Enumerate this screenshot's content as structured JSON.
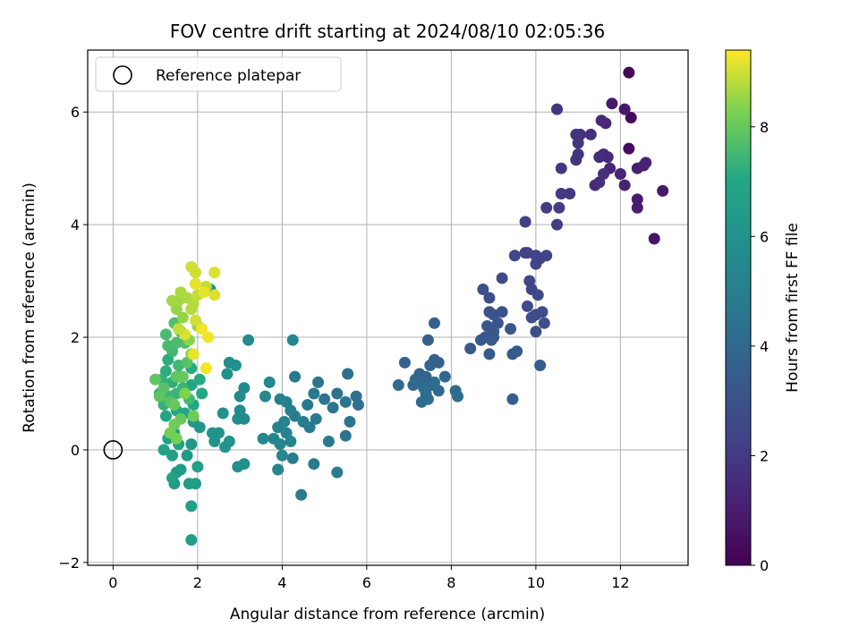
{
  "chart_data": {
    "type": "scatter",
    "title": "FOV centre drift starting at 2024/08/10 02:05:36",
    "xlabel": "Angular distance from reference (arcmin)",
    "ylabel": "Rotation from reference (arcmin)",
    "colorbar_label": "Hours from first FF file",
    "xlim": [
      -0.6,
      13.6
    ],
    "ylim": [
      -2.05,
      7.1
    ],
    "x_ticks": [
      0,
      2,
      4,
      6,
      8,
      10,
      12
    ],
    "y_ticks": [
      -2,
      0,
      2,
      4,
      6
    ],
    "colorbar_ticks": [
      0,
      2,
      4,
      6,
      8
    ],
    "colorbar_range": [
      0,
      9.4
    ],
    "grid": true,
    "colormap": "viridis",
    "legend": {
      "position": "top-left",
      "entries": [
        "Reference platepar"
      ]
    },
    "reference_point": {
      "x": 0,
      "y": 0
    },
    "points": [
      {
        "x": 12.2,
        "y": 6.7,
        "t": 0.2
      },
      {
        "x": 12.25,
        "y": 5.9,
        "t": 0.3
      },
      {
        "x": 12.2,
        "y": 5.35,
        "t": 0.4
      },
      {
        "x": 12.8,
        "y": 3.75,
        "t": 0.7
      },
      {
        "x": 13.0,
        "y": 4.6,
        "t": 0.9
      },
      {
        "x": 12.4,
        "y": 4.3,
        "t": 1.0
      },
      {
        "x": 12.4,
        "y": 4.45,
        "t": 1.0
      },
      {
        "x": 12.1,
        "y": 6.05,
        "t": 0.8
      },
      {
        "x": 11.8,
        "y": 6.15,
        "t": 0.9
      },
      {
        "x": 12.4,
        "y": 5.0,
        "t": 1.1
      },
      {
        "x": 12.55,
        "y": 5.05,
        "t": 1.1
      },
      {
        "x": 12.6,
        "y": 5.1,
        "t": 1.2
      },
      {
        "x": 12.1,
        "y": 4.7,
        "t": 1.2
      },
      {
        "x": 12.0,
        "y": 4.9,
        "t": 1.3
      },
      {
        "x": 11.65,
        "y": 5.8,
        "t": 1.3
      },
      {
        "x": 11.7,
        "y": 5.2,
        "t": 1.4
      },
      {
        "x": 11.75,
        "y": 5.0,
        "t": 1.3
      },
      {
        "x": 11.6,
        "y": 5.25,
        "t": 1.4
      },
      {
        "x": 11.55,
        "y": 5.85,
        "t": 1.4
      },
      {
        "x": 11.5,
        "y": 5.2,
        "t": 1.5
      },
      {
        "x": 11.4,
        "y": 4.7,
        "t": 1.5
      },
      {
        "x": 11.5,
        "y": 4.75,
        "t": 1.6
      },
      {
        "x": 11.6,
        "y": 4.9,
        "t": 1.6
      },
      {
        "x": 11.3,
        "y": 5.6,
        "t": 1.6
      },
      {
        "x": 11.05,
        "y": 5.6,
        "t": 1.7
      },
      {
        "x": 10.95,
        "y": 5.6,
        "t": 1.7
      },
      {
        "x": 11.0,
        "y": 5.45,
        "t": 1.8
      },
      {
        "x": 11.0,
        "y": 5.25,
        "t": 1.8
      },
      {
        "x": 10.95,
        "y": 5.15,
        "t": 1.8
      },
      {
        "x": 10.5,
        "y": 6.05,
        "t": 1.9
      },
      {
        "x": 10.6,
        "y": 5.0,
        "t": 1.9
      },
      {
        "x": 10.8,
        "y": 4.55,
        "t": 2.0
      },
      {
        "x": 10.6,
        "y": 4.55,
        "t": 2.0
      },
      {
        "x": 10.55,
        "y": 4.3,
        "t": 2.1
      },
      {
        "x": 10.25,
        "y": 4.3,
        "t": 2.1
      },
      {
        "x": 10.5,
        "y": 4.0,
        "t": 2.1
      },
      {
        "x": 9.75,
        "y": 4.05,
        "t": 2.2
      },
      {
        "x": 9.75,
        "y": 3.5,
        "t": 2.3
      },
      {
        "x": 9.8,
        "y": 3.5,
        "t": 2.3
      },
      {
        "x": 10.0,
        "y": 3.45,
        "t": 2.3
      },
      {
        "x": 10.1,
        "y": 3.4,
        "t": 2.4
      },
      {
        "x": 10.0,
        "y": 3.3,
        "t": 2.4
      },
      {
        "x": 10.25,
        "y": 3.45,
        "t": 2.4
      },
      {
        "x": 9.5,
        "y": 3.45,
        "t": 2.5
      },
      {
        "x": 9.85,
        "y": 3.0,
        "t": 2.5
      },
      {
        "x": 9.9,
        "y": 2.85,
        "t": 2.5
      },
      {
        "x": 9.2,
        "y": 3.05,
        "t": 2.6
      },
      {
        "x": 10.05,
        "y": 2.75,
        "t": 2.6
      },
      {
        "x": 9.8,
        "y": 2.55,
        "t": 2.7
      },
      {
        "x": 10.0,
        "y": 2.4,
        "t": 2.7
      },
      {
        "x": 10.15,
        "y": 2.45,
        "t": 2.7
      },
      {
        "x": 9.9,
        "y": 2.35,
        "t": 2.8
      },
      {
        "x": 10.2,
        "y": 2.25,
        "t": 2.8
      },
      {
        "x": 10.0,
        "y": 2.1,
        "t": 2.8
      },
      {
        "x": 8.75,
        "y": 2.85,
        "t": 2.9
      },
      {
        "x": 8.9,
        "y": 2.7,
        "t": 2.9
      },
      {
        "x": 8.9,
        "y": 2.45,
        "t": 3.0
      },
      {
        "x": 9.0,
        "y": 2.4,
        "t": 3.0
      },
      {
        "x": 9.2,
        "y": 2.45,
        "t": 3.0
      },
      {
        "x": 9.1,
        "y": 2.25,
        "t": 3.1
      },
      {
        "x": 8.85,
        "y": 2.2,
        "t": 3.1
      },
      {
        "x": 9.0,
        "y": 2.0,
        "t": 3.1
      },
      {
        "x": 9.4,
        "y": 2.15,
        "t": 3.2
      },
      {
        "x": 8.8,
        "y": 2.0,
        "t": 3.2
      },
      {
        "x": 9.0,
        "y": 2.1,
        "t": 3.2
      },
      {
        "x": 8.7,
        "y": 1.95,
        "t": 3.3
      },
      {
        "x": 8.95,
        "y": 1.95,
        "t": 3.3
      },
      {
        "x": 8.45,
        "y": 1.8,
        "t": 3.3
      },
      {
        "x": 8.9,
        "y": 1.7,
        "t": 3.4
      },
      {
        "x": 9.45,
        "y": 1.7,
        "t": 3.4
      },
      {
        "x": 9.55,
        "y": 1.75,
        "t": 3.4
      },
      {
        "x": 10.1,
        "y": 1.5,
        "t": 3.5
      },
      {
        "x": 9.45,
        "y": 0.9,
        "t": 3.5
      },
      {
        "x": 7.6,
        "y": 2.25,
        "t": 3.6
      },
      {
        "x": 7.45,
        "y": 1.95,
        "t": 3.6
      },
      {
        "x": 7.6,
        "y": 1.6,
        "t": 3.7
      },
      {
        "x": 7.7,
        "y": 1.55,
        "t": 3.7
      },
      {
        "x": 6.9,
        "y": 1.55,
        "t": 3.7
      },
      {
        "x": 7.25,
        "y": 1.35,
        "t": 3.8
      },
      {
        "x": 7.5,
        "y": 1.5,
        "t": 3.8
      },
      {
        "x": 7.4,
        "y": 1.3,
        "t": 3.8
      },
      {
        "x": 7.15,
        "y": 1.25,
        "t": 3.9
      },
      {
        "x": 7.3,
        "y": 1.2,
        "t": 3.9
      },
      {
        "x": 7.55,
        "y": 1.15,
        "t": 3.9
      },
      {
        "x": 7.85,
        "y": 1.3,
        "t": 4.0
      },
      {
        "x": 7.7,
        "y": 1.05,
        "t": 4.0
      },
      {
        "x": 7.4,
        "y": 1.0,
        "t": 4.0
      },
      {
        "x": 7.1,
        "y": 1.15,
        "t": 4.1
      },
      {
        "x": 6.75,
        "y": 1.15,
        "t": 4.1
      },
      {
        "x": 8.1,
        "y": 1.05,
        "t": 4.1
      },
      {
        "x": 8.15,
        "y": 0.95,
        "t": 4.2
      },
      {
        "x": 7.45,
        "y": 0.9,
        "t": 4.2
      },
      {
        "x": 7.3,
        "y": 0.85,
        "t": 4.2
      },
      {
        "x": 7.35,
        "y": 1.1,
        "t": 4.2
      },
      {
        "x": 7.6,
        "y": 1.2,
        "t": 4.3
      },
      {
        "x": 5.55,
        "y": 1.35,
        "t": 4.3
      },
      {
        "x": 5.75,
        "y": 0.95,
        "t": 4.4
      },
      {
        "x": 5.8,
        "y": 0.8,
        "t": 4.4
      },
      {
        "x": 5.3,
        "y": 1.0,
        "t": 4.4
      },
      {
        "x": 5.5,
        "y": 0.85,
        "t": 4.5
      },
      {
        "x": 5.6,
        "y": 0.5,
        "t": 4.5
      },
      {
        "x": 5.5,
        "y": 0.25,
        "t": 4.5
      },
      {
        "x": 5.2,
        "y": 0.75,
        "t": 4.6
      },
      {
        "x": 5.0,
        "y": 0.9,
        "t": 4.6
      },
      {
        "x": 4.85,
        "y": 1.2,
        "t": 4.6
      },
      {
        "x": 4.75,
        "y": 1.0,
        "t": 4.7
      },
      {
        "x": 4.6,
        "y": 0.8,
        "t": 4.7
      },
      {
        "x": 4.3,
        "y": 1.3,
        "t": 4.7
      },
      {
        "x": 4.8,
        "y": 0.55,
        "t": 4.8
      },
      {
        "x": 4.65,
        "y": 0.4,
        "t": 4.8
      },
      {
        "x": 5.1,
        "y": 0.15,
        "t": 4.8
      },
      {
        "x": 5.3,
        "y": -0.4,
        "t": 4.9
      },
      {
        "x": 4.45,
        "y": -0.8,
        "t": 4.9
      },
      {
        "x": 4.75,
        "y": -0.25,
        "t": 4.9
      },
      {
        "x": 4.25,
        "y": -0.15,
        "t": 5.0
      },
      {
        "x": 4.5,
        "y": 0.5,
        "t": 5.0
      },
      {
        "x": 4.3,
        "y": 0.6,
        "t": 5.0
      },
      {
        "x": 4.1,
        "y": 0.85,
        "t": 5.1
      },
      {
        "x": 3.95,
        "y": 0.9,
        "t": 5.1
      },
      {
        "x": 4.2,
        "y": 0.7,
        "t": 5.1
      },
      {
        "x": 4.05,
        "y": 0.5,
        "t": 5.2
      },
      {
        "x": 3.9,
        "y": 0.4,
        "t": 5.2
      },
      {
        "x": 4.1,
        "y": 0.3,
        "t": 5.2
      },
      {
        "x": 4.2,
        "y": 0.15,
        "t": 5.3
      },
      {
        "x": 3.95,
        "y": 0.1,
        "t": 5.3
      },
      {
        "x": 3.8,
        "y": 0.2,
        "t": 5.3
      },
      {
        "x": 4.0,
        "y": -0.1,
        "t": 5.4
      },
      {
        "x": 3.9,
        "y": -0.35,
        "t": 5.4
      },
      {
        "x": 4.25,
        "y": 1.95,
        "t": 5.4
      },
      {
        "x": 3.6,
        "y": 0.95,
        "t": 5.5
      },
      {
        "x": 3.55,
        "y": 0.2,
        "t": 5.5
      },
      {
        "x": 3.7,
        "y": 1.2,
        "t": 5.5
      },
      {
        "x": 3.2,
        "y": 1.95,
        "t": 5.6
      },
      {
        "x": 3.1,
        "y": 1.1,
        "t": 5.6
      },
      {
        "x": 3.0,
        "y": 0.95,
        "t": 5.6
      },
      {
        "x": 3.0,
        "y": 0.7,
        "t": 5.7
      },
      {
        "x": 3.1,
        "y": 0.55,
        "t": 5.7
      },
      {
        "x": 2.95,
        "y": 0.55,
        "t": 5.7
      },
      {
        "x": 3.1,
        "y": -0.25,
        "t": 5.8
      },
      {
        "x": 2.95,
        "y": -0.3,
        "t": 5.8
      },
      {
        "x": 2.75,
        "y": 1.55,
        "t": 5.8
      },
      {
        "x": 2.9,
        "y": 1.5,
        "t": 5.9
      },
      {
        "x": 2.7,
        "y": 1.35,
        "t": 5.9
      },
      {
        "x": 2.6,
        "y": 0.65,
        "t": 5.9
      },
      {
        "x": 2.75,
        "y": 0.15,
        "t": 6.0
      },
      {
        "x": 2.65,
        "y": 0.05,
        "t": 6.0
      },
      {
        "x": 2.5,
        "y": 0.3,
        "t": 6.0
      },
      {
        "x": 2.35,
        "y": 0.3,
        "t": 6.1
      },
      {
        "x": 2.4,
        "y": 0.15,
        "t": 6.1
      },
      {
        "x": 2.05,
        "y": 0.4,
        "t": 6.2
      },
      {
        "x": 2.3,
        "y": 2.85,
        "t": 6.2
      },
      {
        "x": 1.9,
        "y": 0.5,
        "t": 6.3
      },
      {
        "x": 1.85,
        "y": 0.1,
        "t": 6.3
      },
      {
        "x": 1.75,
        "y": -0.1,
        "t": 6.4
      },
      {
        "x": 1.6,
        "y": -0.35,
        "t": 6.4
      },
      {
        "x": 1.5,
        "y": -0.4,
        "t": 6.4
      },
      {
        "x": 1.45,
        "y": -0.6,
        "t": 6.5
      },
      {
        "x": 1.8,
        "y": -0.6,
        "t": 6.5
      },
      {
        "x": 1.95,
        "y": -0.6,
        "t": 6.5
      },
      {
        "x": 2.0,
        "y": -0.3,
        "t": 6.6
      },
      {
        "x": 1.85,
        "y": -1.0,
        "t": 6.6
      },
      {
        "x": 1.85,
        "y": -1.6,
        "t": 6.6
      },
      {
        "x": 1.4,
        "y": -0.5,
        "t": 6.7
      },
      {
        "x": 1.4,
        "y": -0.1,
        "t": 6.7
      },
      {
        "x": 1.55,
        "y": 0.1,
        "t": 6.7
      },
      {
        "x": 1.2,
        "y": 0.0,
        "t": 6.8
      },
      {
        "x": 1.3,
        "y": 0.2,
        "t": 6.8
      },
      {
        "x": 1.45,
        "y": 0.3,
        "t": 6.8
      },
      {
        "x": 1.25,
        "y": 0.6,
        "t": 6.9
      },
      {
        "x": 1.5,
        "y": 0.7,
        "t": 6.9
      },
      {
        "x": 1.7,
        "y": 0.65,
        "t": 6.9
      },
      {
        "x": 1.9,
        "y": 0.8,
        "t": 7.0
      },
      {
        "x": 2.1,
        "y": 1.0,
        "t": 7.0
      },
      {
        "x": 1.85,
        "y": 1.15,
        "t": 7.0
      },
      {
        "x": 2.05,
        "y": 1.25,
        "t": 7.1
      },
      {
        "x": 1.85,
        "y": 1.45,
        "t": 7.1
      },
      {
        "x": 1.6,
        "y": 1.3,
        "t": 7.1
      },
      {
        "x": 1.4,
        "y": 1.2,
        "t": 7.2
      },
      {
        "x": 1.25,
        "y": 1.4,
        "t": 7.2
      },
      {
        "x": 1.3,
        "y": 1.6,
        "t": 7.2
      },
      {
        "x": 1.15,
        "y": 1.25,
        "t": 7.3
      },
      {
        "x": 1.1,
        "y": 1.0,
        "t": 7.3
      },
      {
        "x": 1.2,
        "y": 0.8,
        "t": 7.3
      },
      {
        "x": 1.35,
        "y": 0.95,
        "t": 7.4
      },
      {
        "x": 1.5,
        "y": 1.0,
        "t": 7.4
      },
      {
        "x": 1.65,
        "y": 1.1,
        "t": 7.4
      },
      {
        "x": 1.8,
        "y": 0.9,
        "t": 7.5
      },
      {
        "x": 1.55,
        "y": 1.5,
        "t": 7.5
      },
      {
        "x": 1.4,
        "y": 1.75,
        "t": 7.5
      },
      {
        "x": 1.3,
        "y": 1.85,
        "t": 7.6
      },
      {
        "x": 1.5,
        "y": 1.9,
        "t": 7.6
      },
      {
        "x": 1.25,
        "y": 2.05,
        "t": 7.6
      },
      {
        "x": 1.45,
        "y": 2.25,
        "t": 7.7
      },
      {
        "x": 1.6,
        "y": 2.1,
        "t": 7.7
      },
      {
        "x": 1.7,
        "y": 1.9,
        "t": 7.7
      },
      {
        "x": 1.75,
        "y": 1.55,
        "t": 7.8
      },
      {
        "x": 1.2,
        "y": 1.1,
        "t": 7.8
      },
      {
        "x": 1.35,
        "y": 0.85,
        "t": 7.8
      },
      {
        "x": 1.0,
        "y": 1.25,
        "t": 7.9
      },
      {
        "x": 1.1,
        "y": 0.95,
        "t": 7.9
      },
      {
        "x": 1.5,
        "y": 1.3,
        "t": 7.9
      },
      {
        "x": 1.65,
        "y": 1.3,
        "t": 8.0
      },
      {
        "x": 1.45,
        "y": 0.8,
        "t": 8.0
      },
      {
        "x": 1.6,
        "y": 0.55,
        "t": 8.0
      },
      {
        "x": 1.9,
        "y": 0.6,
        "t": 8.1
      },
      {
        "x": 1.45,
        "y": 0.45,
        "t": 8.1
      },
      {
        "x": 1.5,
        "y": 0.2,
        "t": 8.2
      },
      {
        "x": 1.35,
        "y": 0.3,
        "t": 8.2
      },
      {
        "x": 1.7,
        "y": 1.0,
        "t": 8.3
      },
      {
        "x": 1.85,
        "y": 1.7,
        "t": 8.3
      },
      {
        "x": 1.8,
        "y": 1.95,
        "t": 8.4
      },
      {
        "x": 2.0,
        "y": 2.2,
        "t": 8.4
      },
      {
        "x": 1.65,
        "y": 2.35,
        "t": 8.5
      },
      {
        "x": 1.5,
        "y": 2.5,
        "t": 8.5
      },
      {
        "x": 1.55,
        "y": 2.65,
        "t": 8.6
      },
      {
        "x": 1.4,
        "y": 2.65,
        "t": 8.6
      },
      {
        "x": 1.6,
        "y": 2.8,
        "t": 8.7
      },
      {
        "x": 1.75,
        "y": 2.7,
        "t": 8.7
      },
      {
        "x": 1.85,
        "y": 2.5,
        "t": 8.8
      },
      {
        "x": 1.9,
        "y": 2.6,
        "t": 8.8
      },
      {
        "x": 2.0,
        "y": 2.75,
        "t": 8.9
      },
      {
        "x": 2.2,
        "y": 2.9,
        "t": 8.9
      },
      {
        "x": 1.85,
        "y": 3.25,
        "t": 9.0
      },
      {
        "x": 1.95,
        "y": 3.15,
        "t": 9.0
      },
      {
        "x": 2.4,
        "y": 3.15,
        "t": 9.1
      },
      {
        "x": 2.4,
        "y": 2.75,
        "t": 9.1
      },
      {
        "x": 2.15,
        "y": 2.8,
        "t": 9.2
      },
      {
        "x": 1.95,
        "y": 2.95,
        "t": 9.2
      },
      {
        "x": 2.1,
        "y": 2.15,
        "t": 9.3
      },
      {
        "x": 2.25,
        "y": 2.0,
        "t": 9.3
      },
      {
        "x": 2.2,
        "y": 1.45,
        "t": 9.3
      },
      {
        "x": 1.9,
        "y": 1.7,
        "t": 9.2
      },
      {
        "x": 1.7,
        "y": 2.05,
        "t": 9.1
      },
      {
        "x": 1.95,
        "y": 2.3,
        "t": 9.0
      },
      {
        "x": 1.55,
        "y": 2.15,
        "t": 8.9
      }
    ]
  }
}
